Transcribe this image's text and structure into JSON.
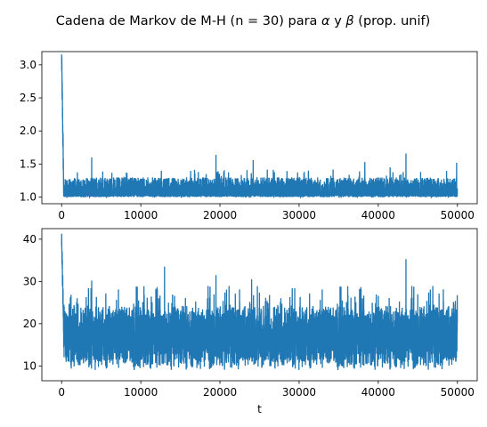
{
  "figure": {
    "suptitle": "Cadena de Markov de M-H (n = 30) para α y β (prop. unif)"
  },
  "chart_data": [
    {
      "type": "line",
      "title": "",
      "xlabel": "",
      "ylabel": "",
      "xlim": [
        -2500,
        52500
      ],
      "ylim": [
        0.9,
        3.2
      ],
      "xticks": [
        0,
        10000,
        20000,
        30000,
        40000,
        50000
      ],
      "xtick_labels": [
        "0",
        "10000",
        "20000",
        "30000",
        "40000",
        "50000"
      ],
      "yticks": [
        1.0,
        1.5,
        2.0,
        2.5,
        3.0
      ],
      "ytick_labels": [
        "1.0",
        "1.5",
        "2.0",
        "2.5",
        "3.0"
      ],
      "grid": false,
      "color": "#1f77b4",
      "trace_summary": {
        "n_iterations": 50000,
        "start_value": 3.08,
        "burn_in_peak": 3.08,
        "floor": 1.0,
        "typical_upper": 1.3,
        "spikes": [
          {
            "t": 3800,
            "y": 1.6
          },
          {
            "t": 19500,
            "y": 1.64
          },
          {
            "t": 24200,
            "y": 1.56
          },
          {
            "t": 38300,
            "y": 1.53
          },
          {
            "t": 41500,
            "y": 1.45
          },
          {
            "t": 43500,
            "y": 1.66
          },
          {
            "t": 49900,
            "y": 1.52
          }
        ]
      }
    },
    {
      "type": "line",
      "title": "",
      "xlabel": "t",
      "ylabel": "",
      "xlim": [
        -2500,
        52500
      ],
      "ylim": [
        6.5,
        42.5
      ],
      "xticks": [
        0,
        10000,
        20000,
        30000,
        40000,
        50000
      ],
      "xtick_labels": [
        "0",
        "10000",
        "20000",
        "30000",
        "40000",
        "50000"
      ],
      "yticks": [
        10,
        20,
        30,
        40
      ],
      "ytick_labels": [
        "10",
        "20",
        "30",
        "40"
      ],
      "grid": false,
      "color": "#1f77b4",
      "trace_summary": {
        "n_iterations": 50000,
        "start_value": 41,
        "burn_in_peak": 41.2,
        "typical_low": 12,
        "typical_high": 24,
        "min_value": 8,
        "spikes": [
          {
            "t": 13000,
            "y": 33.5
          },
          {
            "t": 19500,
            "y": 31.5
          },
          {
            "t": 43500,
            "y": 35.3
          },
          {
            "t": 24000,
            "y": 30.5
          },
          {
            "t": 3800,
            "y": 30.2
          }
        ]
      }
    }
  ]
}
